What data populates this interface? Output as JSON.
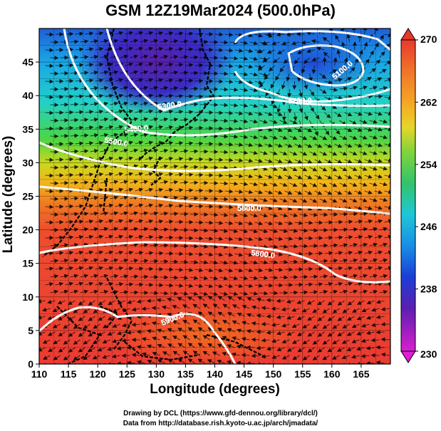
{
  "title": "GSM 12Z19Mar2024 (500.0hPa)",
  "xlabel": "Longitude (degrees)",
  "ylabel": "Latitude  (degrees)",
  "credits": {
    "line1": "Drawing by DCL (https://www.gfd-dennou.org/library/dcl/)",
    "line2": "Data from http://database.rish.kyoto-u.ac.jp/arch/jmadata/"
  },
  "map": {
    "lon_range": [
      110,
      170
    ],
    "lat_range": [
      0,
      50
    ],
    "x_ticks": [
      "110",
      "115",
      "120",
      "125",
      "130",
      "135",
      "140",
      "145",
      "150",
      "155",
      "160",
      "165"
    ],
    "y_ticks": [
      "0",
      "5",
      "10",
      "15",
      "20",
      "25",
      "30",
      "35",
      "40",
      "45"
    ]
  },
  "colorbar": {
    "range": [
      230,
      270
    ],
    "tick_labels": [
      "270",
      "262",
      "254",
      "246",
      "238",
      "230"
    ]
  },
  "contours": [
    {
      "label": "5100.0"
    },
    {
      "label": "5200.0"
    },
    {
      "label": "5300.0"
    },
    {
      "label": "5400.0"
    },
    {
      "label": "5500.0"
    },
    {
      "label": "5600.0"
    },
    {
      "label": "5800.0"
    },
    {
      "label": "5900.0"
    }
  ],
  "colors": {
    "background": "#ffffff",
    "axis": "#000000",
    "contour": "#ffffff",
    "vector": "#000000"
  }
}
